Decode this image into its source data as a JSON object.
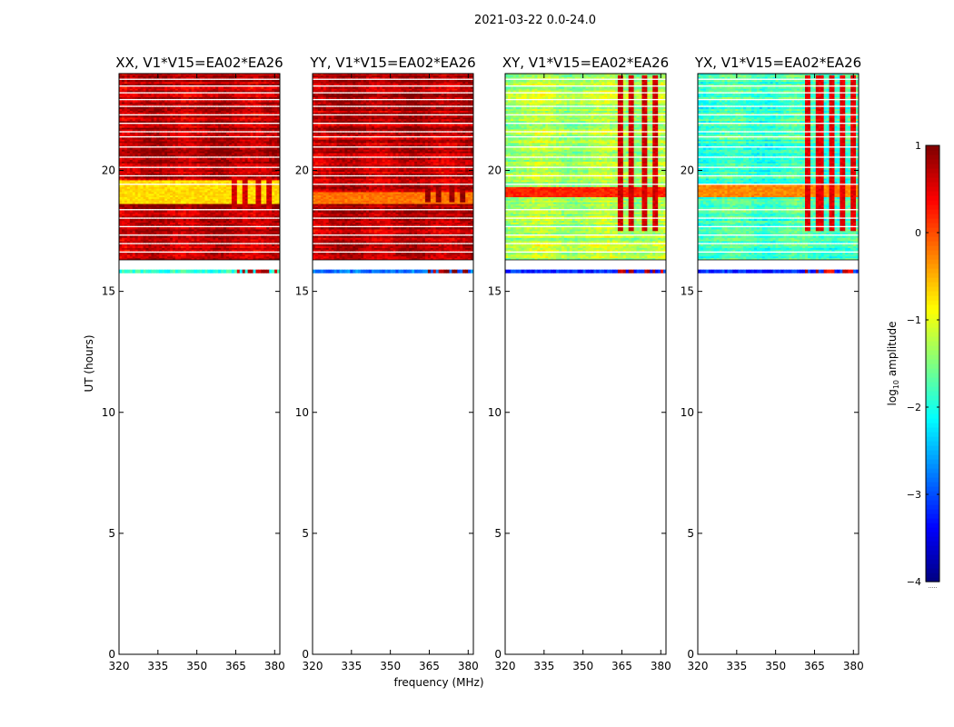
{
  "figure_title": "2021-03-22 0.0-24.0",
  "shared": {
    "xlabel": "frequency (MHz)",
    "ylabel": "UT (hours)",
    "xticks": [
      320,
      335,
      350,
      365,
      380
    ],
    "yticks": [
      0,
      5,
      10,
      15,
      20
    ],
    "xlim": [
      320,
      382
    ],
    "ylim": [
      0,
      24
    ]
  },
  "colorbar": {
    "label_main": "log",
    "label_sub": "10",
    "label_tail": " amplitude",
    "ticks": [
      "1",
      "0",
      "−1",
      "−2",
      "−3",
      "−4"
    ],
    "tick_values": [
      1,
      0,
      -1,
      -2,
      -3,
      -4
    ],
    "vmin": -4,
    "vmax": 1,
    "colormap": "jet",
    "footer_dots": "....."
  },
  "chart_data": [
    {
      "type": "heatmap",
      "title": "XX, V1*V15=EA02*EA26",
      "x_range_mhz": [
        320,
        382
      ],
      "data_ut_range_hours": [
        15.7,
        24.0
      ],
      "no_data_ut_range_hours": [
        0,
        15.7
      ],
      "typical_log10_amplitude": 0.7,
      "scan_band_ut_hours": [
        15.75,
        15.9
      ],
      "scan_band_log10_amplitude": -1.9,
      "rfi_band_mhz": [
        363,
        380
      ],
      "rfi_ut_hours": [
        17.8,
        19.8
      ],
      "rfi_log10_amplitude": 0.6,
      "low_feature_ut_hours": [
        18.6,
        19.6
      ],
      "low_feature_log10_amplitude": -0.7
    },
    {
      "type": "heatmap",
      "title": "YY, V1*V15=EA02*EA26",
      "x_range_mhz": [
        320,
        382
      ],
      "data_ut_range_hours": [
        15.7,
        24.0
      ],
      "no_data_ut_range_hours": [
        0,
        15.7
      ],
      "typical_log10_amplitude": 0.7,
      "scan_band_ut_hours": [
        15.75,
        15.9
      ],
      "scan_band_log10_amplitude": -2.8,
      "rfi_band_mhz": [
        363,
        380
      ],
      "rfi_ut_hours": [
        18.7,
        19.4
      ],
      "rfi_log10_amplitude": 0.9,
      "low_feature_ut_hours": [
        18.6,
        19.1
      ],
      "low_feature_log10_amplitude": -0.2
    },
    {
      "type": "heatmap",
      "title": "XY, V1*V15=EA02*EA26",
      "x_range_mhz": [
        320,
        382
      ],
      "data_ut_range_hours": [
        15.7,
        24.0
      ],
      "no_data_ut_range_hours": [
        0,
        15.7
      ],
      "typical_log10_amplitude": -1.3,
      "scan_band_ut_hours": [
        15.75,
        15.9
      ],
      "scan_band_log10_amplitude": -3.2,
      "rfi_band_mhz": [
        363,
        380
      ],
      "rfi_ut_hours": [
        17.5,
        23.9
      ],
      "rfi_log10_amplitude": 0.6,
      "low_feature_ut_hours": [
        18.9,
        19.3
      ],
      "low_feature_log10_amplitude": 0.2
    },
    {
      "type": "heatmap",
      "title": "YX, V1*V15=EA02*EA26",
      "x_range_mhz": [
        320,
        382
      ],
      "data_ut_range_hours": [
        15.7,
        24.0
      ],
      "no_data_ut_range_hours": [
        0,
        15.7
      ],
      "typical_log10_amplitude": -1.8,
      "scan_band_ut_hours": [
        15.75,
        15.9
      ],
      "scan_band_log10_amplitude": -3.2,
      "rfi_band_mhz": [
        361,
        380
      ],
      "rfi_ut_hours": [
        17.5,
        23.9
      ],
      "rfi_log10_amplitude": 0.5,
      "low_feature_ut_hours": [
        18.9,
        19.4
      ],
      "low_feature_log10_amplitude": -0.3
    }
  ]
}
